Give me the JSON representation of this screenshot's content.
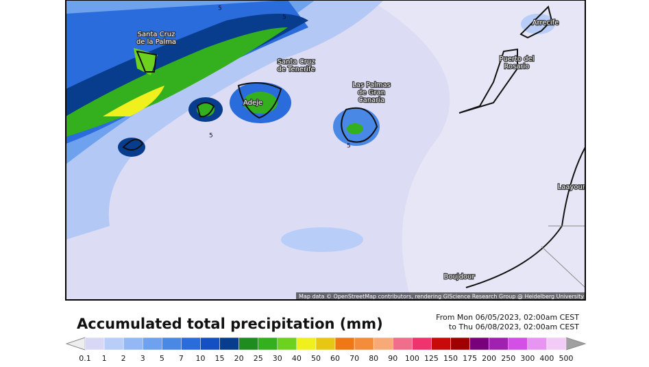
{
  "map": {
    "places": [
      "Santa Cruz de la Palma",
      "Santa Cruz de Tenerife",
      "Adeje",
      "Las Palmas de Gran Canaria",
      "Puerto del Rosario",
      "Arrecife",
      "Laayoune",
      "Boujdour"
    ],
    "contour_labels": [
      "5",
      "5",
      "5",
      "5"
    ],
    "attribution": "Map data © OpenStreetMap contributors, rendering GIScience Research Group @ Heidelberg University"
  },
  "legend": {
    "title": "Accumulated total precipitation (mm)",
    "from": "From Mon 06/05/2023, 02:00am CEST",
    "to": "to Thu 06/08/2023, 02:00am CEST",
    "labels": [
      "0.1",
      "1",
      "2",
      "3",
      "5",
      "7",
      "10",
      "15",
      "20",
      "25",
      "30",
      "40",
      "50",
      "60",
      "70",
      "80",
      "90",
      "100",
      "125",
      "150",
      "175",
      "200",
      "250",
      "300",
      "400",
      "500"
    ],
    "low_color": "#eeeeee",
    "high_color": "#a0a0a0",
    "colors": [
      "#d8d8f6",
      "#b8cdf8",
      "#94b8f4",
      "#6ea2ee",
      "#4a88e6",
      "#2a6cdc",
      "#1450c4",
      "#083c8c",
      "#1e8c1e",
      "#34b01e",
      "#6cd21e",
      "#f0f01e",
      "#e6c814",
      "#f07814",
      "#f58c3c",
      "#f5aa78",
      "#f06e8c",
      "#f0326e",
      "#c80a0a",
      "#a00000",
      "#78007a",
      "#a020b0",
      "#d250e6",
      "#e696f0",
      "#f2ccf6"
    ]
  }
}
